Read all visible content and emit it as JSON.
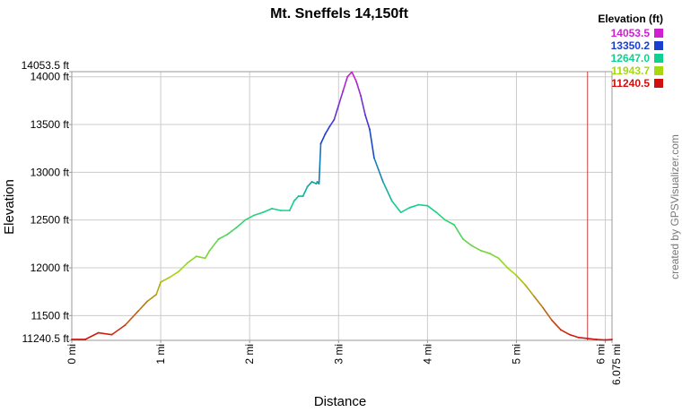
{
  "chart_data": {
    "type": "line",
    "title": "Mt. Sneffels 14,150ft",
    "xlabel": "Distance",
    "ylabel": "Elevation",
    "xlim": [
      0,
      6.075
    ],
    "ylim": [
      11240.5,
      14053.5
    ],
    "x_ticks": [
      {
        "value": 0,
        "label": "0 mi"
      },
      {
        "value": 1,
        "label": "1 mi"
      },
      {
        "value": 2,
        "label": "2 mi"
      },
      {
        "value": 3,
        "label": "3 mi"
      },
      {
        "value": 4,
        "label": "4 mi"
      },
      {
        "value": 5,
        "label": "5 mi"
      },
      {
        "value": 6,
        "label": "6 mi"
      },
      {
        "value": 6.075,
        "label": "6.075 mi"
      }
    ],
    "y_ticks": [
      {
        "value": 11240.5,
        "label": "11240.5 ft"
      },
      {
        "value": 11500,
        "label": "11500 ft"
      },
      {
        "value": 12000,
        "label": "12000 ft"
      },
      {
        "value": 12500,
        "label": "12500 ft"
      },
      {
        "value": 13000,
        "label": "13000 ft"
      },
      {
        "value": 13500,
        "label": "13500 ft"
      },
      {
        "value": 14000,
        "label": "14000 ft"
      },
      {
        "value": 14053.5,
        "label": "14053.5 ft"
      }
    ],
    "grid": true,
    "marker_line_x": 5.8,
    "legend": {
      "title": "Elevation (ft)",
      "position": "top-right",
      "entries": [
        {
          "label": "14053.5",
          "color": "#d020d0"
        },
        {
          "label": "13350.2",
          "color": "#1a3fd0"
        },
        {
          "label": "12647.0",
          "color": "#10d090"
        },
        {
          "label": "11943.7",
          "color": "#a8d810"
        },
        {
          "label": "11240.5",
          "color": "#d01010"
        }
      ]
    },
    "series": [
      {
        "name": "Elevation",
        "x": [
          0,
          0.15,
          0.3,
          0.45,
          0.6,
          0.75,
          0.85,
          0.95,
          1.0,
          1.1,
          1.2,
          1.3,
          1.4,
          1.5,
          1.55,
          1.65,
          1.75,
          1.85,
          1.95,
          2.05,
          2.15,
          2.25,
          2.35,
          2.45,
          2.5,
          2.55,
          2.6,
          2.65,
          2.7,
          2.75,
          2.76,
          2.78,
          2.8,
          2.85,
          2.9,
          2.95,
          3.0,
          3.05,
          3.1,
          3.15,
          3.2,
          3.25,
          3.3,
          3.35,
          3.4,
          3.5,
          3.6,
          3.7,
          3.8,
          3.9,
          4.0,
          4.1,
          4.2,
          4.3,
          4.4,
          4.5,
          4.6,
          4.7,
          4.8,
          4.9,
          5.0,
          5.1,
          5.2,
          5.3,
          5.4,
          5.5,
          5.6,
          5.7,
          5.8,
          5.9,
          6.0,
          6.075
        ],
        "values": [
          11250,
          11250,
          11320,
          11300,
          11400,
          11550,
          11650,
          11720,
          11850,
          11900,
          11960,
          12050,
          12120,
          12100,
          12180,
          12300,
          12350,
          12420,
          12500,
          12550,
          12580,
          12620,
          12600,
          12600,
          12700,
          12750,
          12750,
          12850,
          12900,
          12880,
          12900,
          12880,
          13300,
          13400,
          13480,
          13550,
          13700,
          13850,
          14000,
          14050,
          13950,
          13800,
          13600,
          13450,
          13150,
          12900,
          12700,
          12580,
          12630,
          12660,
          12650,
          12580,
          12500,
          12450,
          12300,
          12230,
          12180,
          12150,
          12100,
          12000,
          11920,
          11820,
          11700,
          11580,
          11450,
          11350,
          11300,
          11270,
          11260,
          11250,
          11245,
          11250
        ]
      }
    ]
  },
  "credit": "created by GPSVisualizer.com"
}
